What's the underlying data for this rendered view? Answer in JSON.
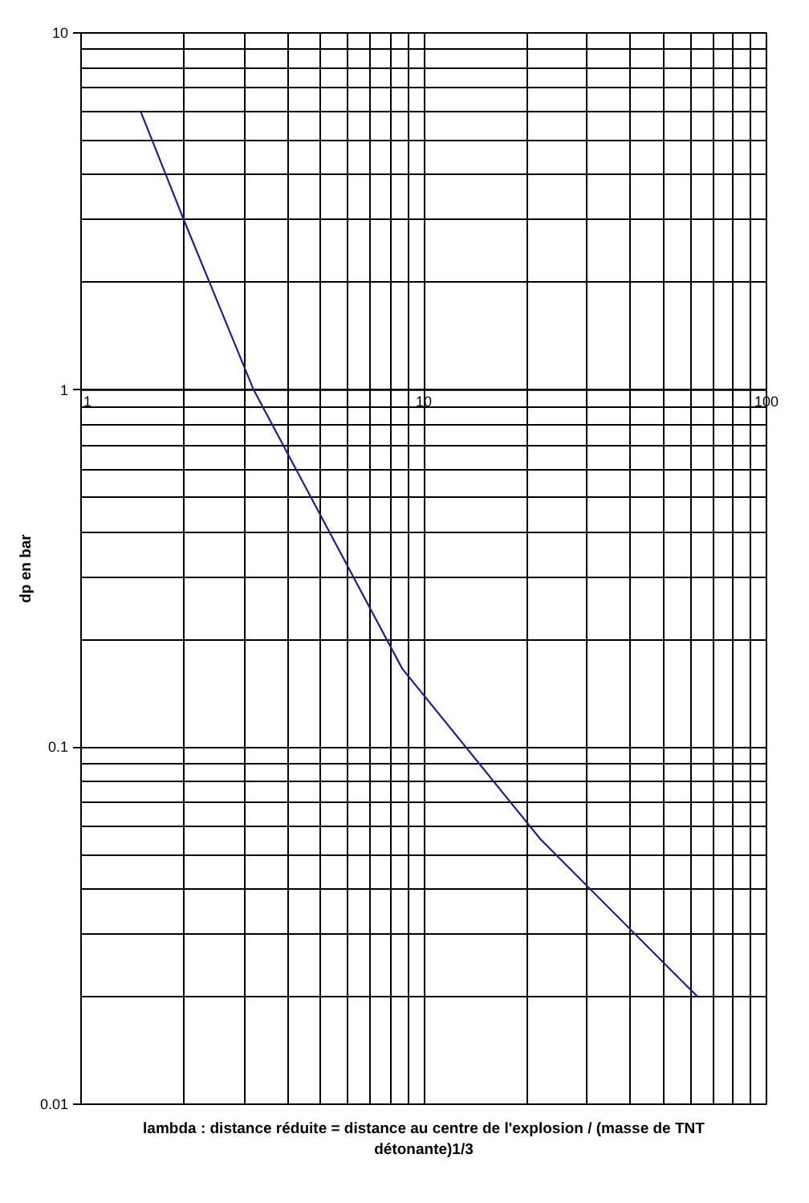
{
  "chart_data": {
    "type": "line",
    "xlabel": "lambda : distance réduite = distance au centre de l'explosion / (masse de TNT détonante)1/3",
    "ylabel": "dp en bar",
    "x": [
      1.5,
      2,
      3.2,
      8.7,
      22,
      57,
      63
    ],
    "values": [
      6,
      3,
      1,
      0.165,
      0.055,
      0.022,
      0.02
    ],
    "color": "#20208f",
    "log": "xy",
    "xlim": [
      1,
      100
    ],
    "ylim": [
      0.01,
      10
    ],
    "xticks": [
      1,
      {
        "value": 2,
        "label": null
      },
      {
        "value": 3,
        "label": null
      },
      {
        "value": 4,
        "label": null
      },
      {
        "value": 5,
        "label": null
      },
      {
        "value": 6,
        "label": null
      },
      {
        "value": 7,
        "label": null
      },
      {
        "value": 8,
        "label": null
      },
      {
        "value": 9,
        "label": null
      },
      10,
      {
        "value": 20,
        "label": null
      },
      {
        "value": 30,
        "label": null
      },
      {
        "value": 40,
        "label": null
      },
      {
        "value": 50,
        "label": null
      },
      {
        "value": 60,
        "label": null
      },
      {
        "value": 70,
        "label": null
      },
      {
        "value": 80,
        "label": null
      },
      {
        "value": 90,
        "label": null
      },
      100
    ],
    "yticks": [
      0.01,
      {
        "value": 0.02,
        "label": null
      },
      {
        "value": 0.03,
        "label": null
      },
      {
        "value": 0.04,
        "label": null
      },
      {
        "value": 0.05,
        "label": null
      },
      {
        "value": 0.06,
        "label": null
      },
      {
        "value": 0.07,
        "label": null
      },
      {
        "value": 0.08,
        "label": null
      },
      {
        "value": 0.09,
        "label": null
      },
      0.1,
      {
        "value": 0.2,
        "label": null
      },
      {
        "value": 0.3,
        "label": null
      },
      {
        "value": 0.4,
        "label": null
      },
      {
        "value": 0.5,
        "label": null
      },
      {
        "value": 0.6,
        "label": null
      },
      {
        "value": 0.7,
        "label": null
      },
      {
        "value": 0.8,
        "label": null
      },
      {
        "value": 0.9,
        "label": null
      },
      1,
      {
        "value": 2,
        "label": null
      },
      {
        "value": 3,
        "label": null
      },
      {
        "value": 4,
        "label": null
      },
      {
        "value": 5,
        "label": null
      },
      {
        "value": 6,
        "label": null
      },
      {
        "value": 7,
        "label": null
      },
      {
        "value": 8,
        "label": null
      },
      {
        "value": 9,
        "label": null
      },
      10
    ],
    "grid": true
  }
}
